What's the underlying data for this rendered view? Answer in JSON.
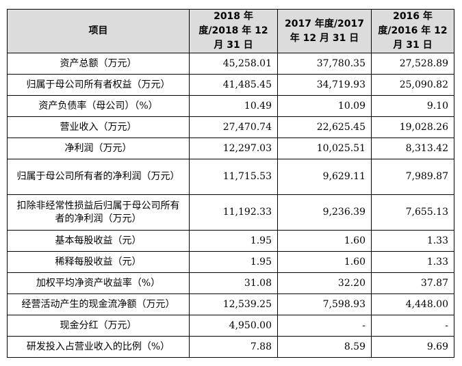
{
  "header": {
    "item": "项目",
    "col2018": "2018 年度/2018 年 12 月 31 日",
    "col2017": "2017 年度/2017 年 12 月 31 日",
    "col2016": "2016 年度/2016 年 12 月 31 日"
  },
  "rows": [
    {
      "label": "资产总额（万元）",
      "v2018": "45,258.01",
      "v2017": "37,780.35",
      "v2016": "27,528.89"
    },
    {
      "label": "归属于母公司所有者权益（万元）",
      "v2018": "41,485.45",
      "v2017": "34,719.93",
      "v2016": "25,090.82"
    },
    {
      "label": "资产负债率（母公司）（%）",
      "v2018": "10.49",
      "v2017": "10.09",
      "v2016": "9.10"
    },
    {
      "label": "营业收入（万元）",
      "v2018": "27,470.74",
      "v2017": "22,625.45",
      "v2016": "19,028.26"
    },
    {
      "label": "净利润（万元）",
      "v2018": "12,297.03",
      "v2017": "10,025.51",
      "v2016": "8,313.42"
    },
    {
      "label": "归属于母公司所有者的净利润（万元）",
      "v2018": "11,715.53",
      "v2017": "9,629.11",
      "v2016": "7,989.87"
    },
    {
      "label": "扣除非经常性损益后归属于母公司所有者的净利润（万元）",
      "v2018": "11,192.33",
      "v2017": "9,236.39",
      "v2016": "7,655.13"
    },
    {
      "label": "基本每股收益（元）",
      "v2018": "1.95",
      "v2017": "1.60",
      "v2016": "1.33"
    },
    {
      "label": "稀释每股收益（元）",
      "v2018": "1.95",
      "v2017": "1.60",
      "v2016": "1.33"
    },
    {
      "label": "加权平均净资产收益率（%）",
      "v2018": "31.08",
      "v2017": "32.20",
      "v2016": "37.87"
    },
    {
      "label": "经营活动产生的现金流净额（万元）",
      "v2018": "12,539.25",
      "v2017": "7,598.93",
      "v2016": "4,448.00"
    },
    {
      "label": "现金分红（万元）",
      "v2018": "4,950.00",
      "v2017": "-",
      "v2016": "-"
    },
    {
      "label": "研发投入占营业收入的比例（%）",
      "v2018": "7.88",
      "v2017": "8.59",
      "v2016": "9.69"
    }
  ]
}
